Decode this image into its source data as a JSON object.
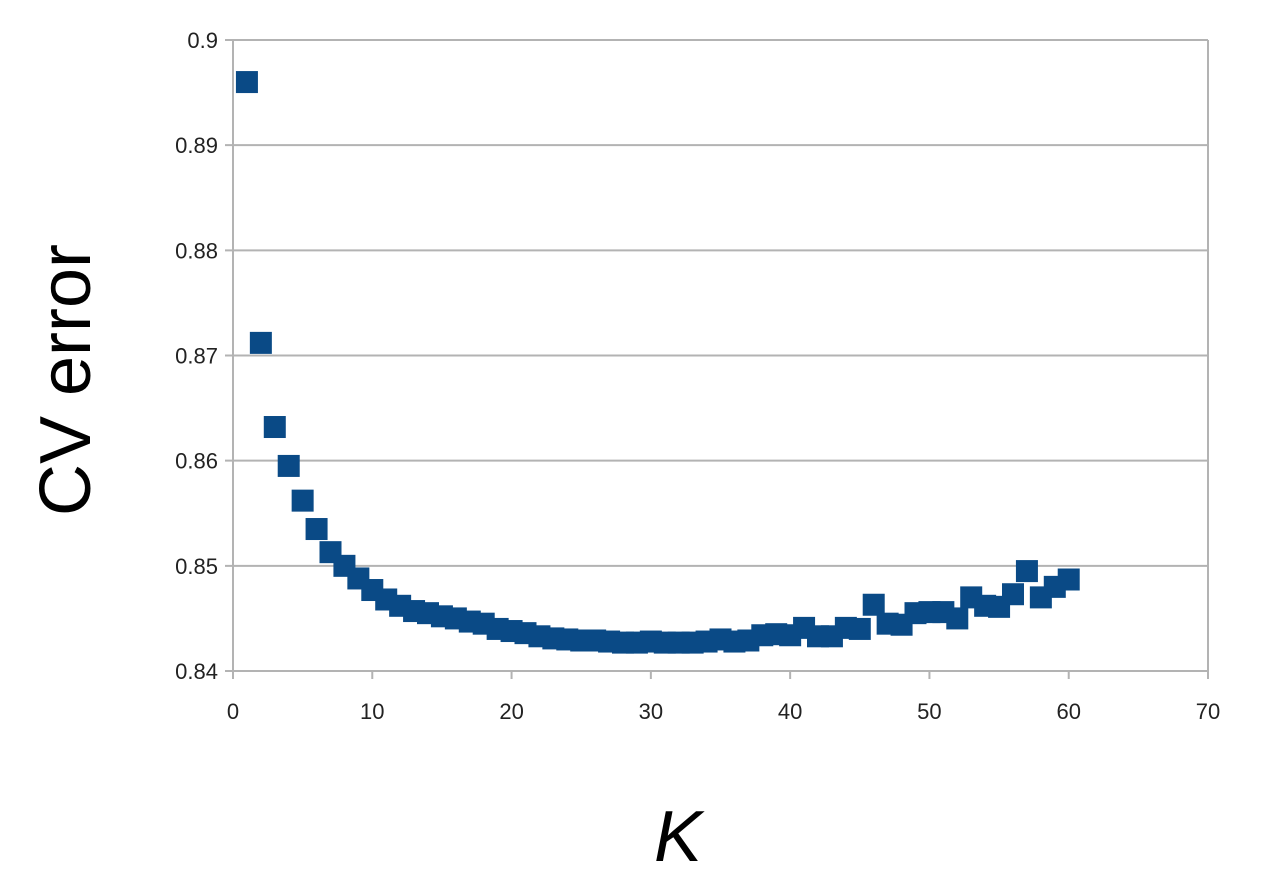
{
  "chart_data": {
    "type": "scatter",
    "title": "",
    "xlabel": "K",
    "ylabel": "CV error",
    "xlim": [
      0,
      70
    ],
    "ylim": [
      0.84,
      0.9
    ],
    "xticks": [
      "0",
      "10",
      "20",
      "30",
      "40",
      "50",
      "60",
      "70"
    ],
    "yticks": [
      "0.84",
      "0.85",
      "0.86",
      "0.87",
      "0.88",
      "0.89",
      "0.9"
    ],
    "grid": true,
    "legend": "none",
    "marker": "square",
    "color": "#0a4a86",
    "series": [
      {
        "x": [
          1,
          2,
          3,
          4,
          5,
          6,
          7,
          8,
          9,
          10,
          11,
          12,
          13,
          14,
          15,
          16,
          17,
          18,
          19,
          20,
          21,
          22,
          23,
          24,
          25,
          26,
          27,
          28,
          29,
          30,
          31,
          32,
          33,
          34,
          35,
          36,
          37,
          38,
          39,
          40,
          41,
          42,
          43,
          44,
          45,
          46,
          47,
          48,
          49,
          50,
          51,
          52,
          53,
          54,
          55,
          56,
          57,
          58,
          59,
          60
        ],
        "y": [
          0.896,
          0.8712,
          0.8632,
          0.8595,
          0.8562,
          0.8535,
          0.8513,
          0.85,
          0.8488,
          0.8477,
          0.8468,
          0.8462,
          0.8457,
          0.8455,
          0.8452,
          0.845,
          0.8447,
          0.8445,
          0.844,
          0.8438,
          0.8436,
          0.8433,
          0.8431,
          0.843,
          0.8429,
          0.8429,
          0.8428,
          0.8427,
          0.8427,
          0.8428,
          0.8427,
          0.8427,
          0.8427,
          0.8428,
          0.843,
          0.8428,
          0.8429,
          0.8434,
          0.8435,
          0.8434,
          0.8441,
          0.8433,
          0.8433,
          0.8441,
          0.844,
          0.8463,
          0.8445,
          0.8444,
          0.8455,
          0.8456,
          0.8456,
          0.845,
          0.847,
          0.8462,
          0.8461,
          0.8473,
          0.8495,
          0.847,
          0.848,
          0.8487
        ]
      }
    ]
  }
}
